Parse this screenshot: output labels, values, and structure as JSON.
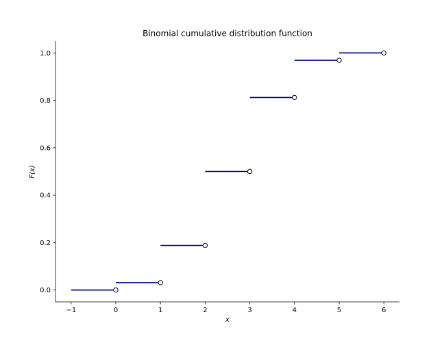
{
  "chart_data": {
    "type": "step",
    "title": "Binomial cumulative distribution function",
    "xlabel": "x",
    "ylabel": "F(x)",
    "xlim": [
      -1.35,
      6.35
    ],
    "ylim": [
      -0.05,
      1.05
    ],
    "xticks": [
      -1,
      0,
      1,
      2,
      3,
      4,
      5,
      6
    ],
    "xtick_labels": [
      "−1",
      "0",
      "1",
      "2",
      "3",
      "4",
      "5",
      "6"
    ],
    "yticks": [
      0.0,
      0.2,
      0.4,
      0.6,
      0.8,
      1.0
    ],
    "ytick_labels": [
      "0.0",
      "0.2",
      "0.4",
      "0.6",
      "0.8",
      "1.0"
    ],
    "segments": [
      {
        "x_start": -1,
        "x_end": 0,
        "y": 0.0
      },
      {
        "x_start": 0,
        "x_end": 1,
        "y": 0.031
      },
      {
        "x_start": 1,
        "x_end": 2,
        "y": 0.188
      },
      {
        "x_start": 2,
        "x_end": 3,
        "y": 0.5
      },
      {
        "x_start": 3,
        "x_end": 4,
        "y": 0.812
      },
      {
        "x_start": 4,
        "x_end": 5,
        "y": 0.969
      },
      {
        "x_start": 5,
        "x_end": 6,
        "y": 1.0
      }
    ],
    "open_points": [
      {
        "x": 0,
        "y": 0.0
      },
      {
        "x": 1,
        "y": 0.031
      },
      {
        "x": 2,
        "y": 0.188
      },
      {
        "x": 3,
        "y": 0.5
      },
      {
        "x": 4,
        "y": 0.812
      },
      {
        "x": 5,
        "y": 0.969
      },
      {
        "x": 6,
        "y": 1.0
      }
    ],
    "line_color": "#00008b",
    "marker_edge_color": "#000000",
    "grid": false,
    "spines": [
      "left",
      "bottom"
    ]
  }
}
